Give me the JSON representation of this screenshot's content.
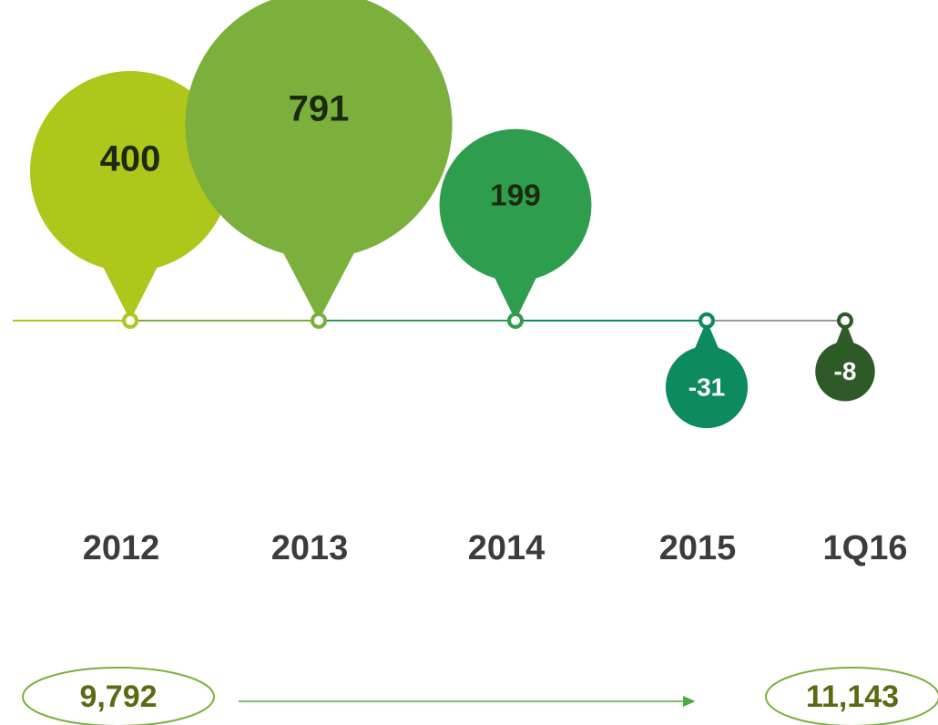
{
  "chart_data": {
    "type": "bubble",
    "categories": [
      "2012",
      "2013",
      "2014",
      "2015",
      "1Q16"
    ],
    "values": [
      400,
      791,
      199,
      -31,
      -8
    ],
    "colors": [
      "#afc61a",
      "#7bb03c",
      "#2e9e4e",
      "#0d8a5e",
      "#2d5a27"
    ],
    "totals": {
      "values": [
        9792,
        11143
      ],
      "value_labels": [
        "9,792",
        "11,143"
      ]
    }
  }
}
